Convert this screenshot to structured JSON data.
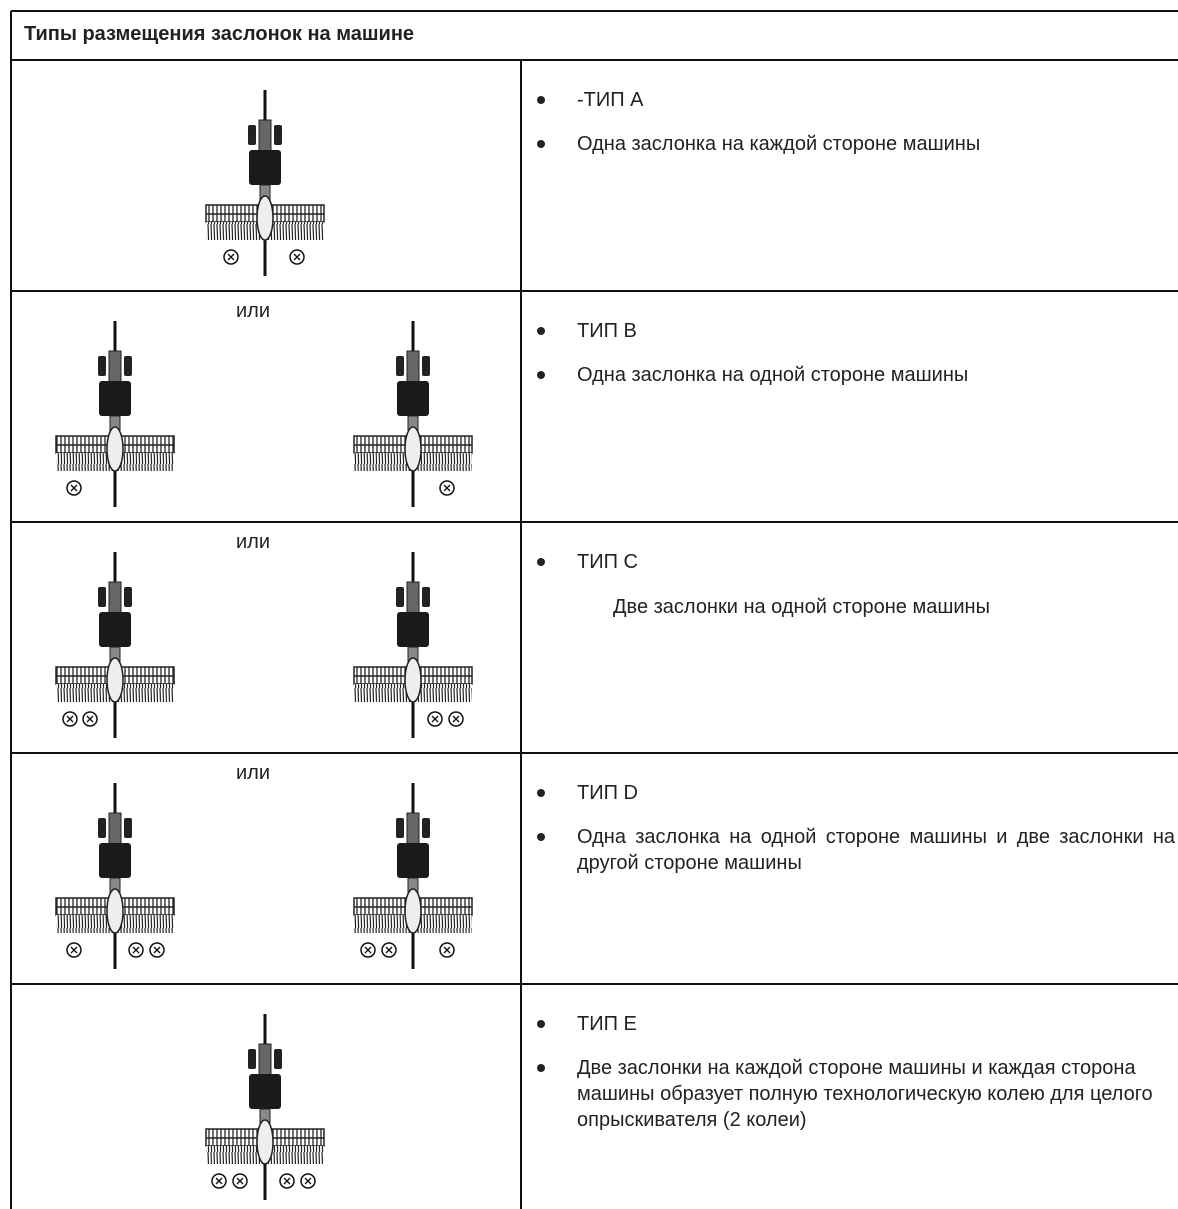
{
  "header": {
    "title": "Типы размещения заслонок на машине"
  },
  "rows": [
    {
      "type_label": "-ТИП A",
      "description": "Одна заслонка на каждой стороне машины"
    },
    {
      "or_label": "или",
      "type_label": "ТИП B",
      "description": "Одна заслонка на одной стороне машины"
    },
    {
      "or_label": "или",
      "type_label": "ТИП C",
      "description": "Две заслонки на одной стороне машины"
    },
    {
      "or_label": "или",
      "type_label": "ТИП D",
      "description": "Одна заслонка на одной стороне машины и две заслонки на другой стороне машины"
    },
    {
      "type_label": "ТИП E",
      "description": "Две заслонки на каждой стороне машины и каждая сторона машины образует полную технологическую колею для целого опрыскивателя (2 колеи)"
    }
  ]
}
